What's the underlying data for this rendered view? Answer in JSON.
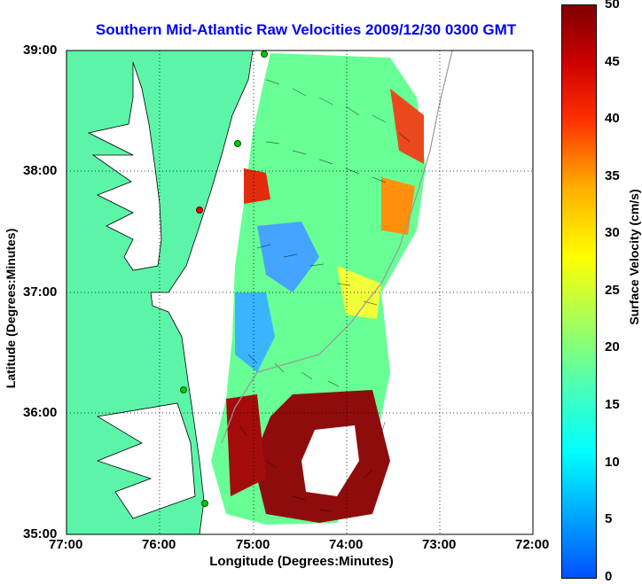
{
  "title": "Southern Mid-Atlantic Raw Velocities 2009/12/30 0300 GMT",
  "xlabel": "Longitude (Degrees:Minutes)",
  "ylabel": "Latitude (Degrees:Minutes)",
  "colorbar_label": "Surface Velocity (cm/s)",
  "lat_ticks": [
    "39:00",
    "38:00",
    "37:00",
    "36:00",
    "35:00"
  ],
  "lon_ticks": [
    "77:00",
    "76:00",
    "75:00",
    "74:00",
    "73:00",
    "72:00"
  ],
  "colorbar_ticks": [
    "50",
    "45",
    "40",
    "35",
    "30",
    "25",
    "20",
    "15",
    "10",
    "5",
    "0"
  ],
  "colors": {
    "title": "#0000ff",
    "land": "#5cf5a8",
    "station": "#00cc00",
    "station_alt": "#ff0000"
  }
}
